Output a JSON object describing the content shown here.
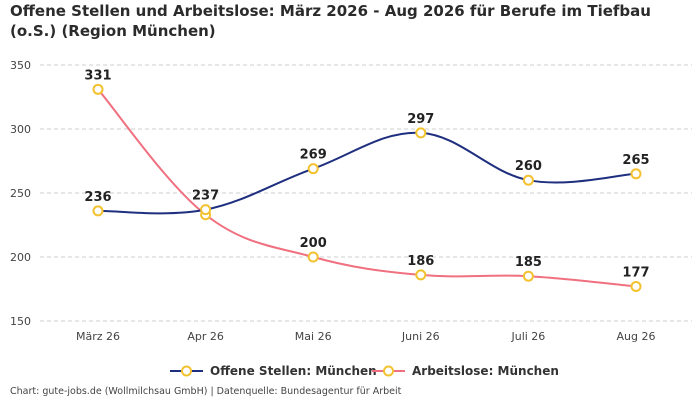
{
  "chart_data": {
    "type": "line",
    "title": "Offene Stellen und Arbeitslose: März 2026 - Aug 2026 für Berufe im Tiefbau (o.S.) (Region München)",
    "categories": [
      "März 26",
      "Apr 26",
      "Mai 26",
      "Juni 26",
      "Juli 26",
      "Aug 26"
    ],
    "series": [
      {
        "name": "Offene Stellen: München",
        "values": [
          236,
          237,
          269,
          297,
          260,
          265
        ],
        "color": "#1f2f7f"
      },
      {
        "name": "Arbeitslose: München",
        "values": [
          331,
          233,
          200,
          186,
          185,
          177
        ],
        "color": "#f07080"
      }
    ],
    "data_labels": [
      [
        "236",
        "237",
        "269",
        "297",
        "260",
        "265"
      ],
      [
        "331",
        "",
        "200",
        "186",
        "185",
        "177"
      ]
    ],
    "y_ticks": [
      150,
      200,
      250,
      300,
      350
    ],
    "ylim": [
      150,
      350
    ],
    "grid": true,
    "legend_position": "bottom-center",
    "marker_color": "#f2c230"
  },
  "footer": "Chart: gute-jobs.de (Wollmilchsau GmbH) | Datenquelle: Bundesagentur für Arbeit"
}
